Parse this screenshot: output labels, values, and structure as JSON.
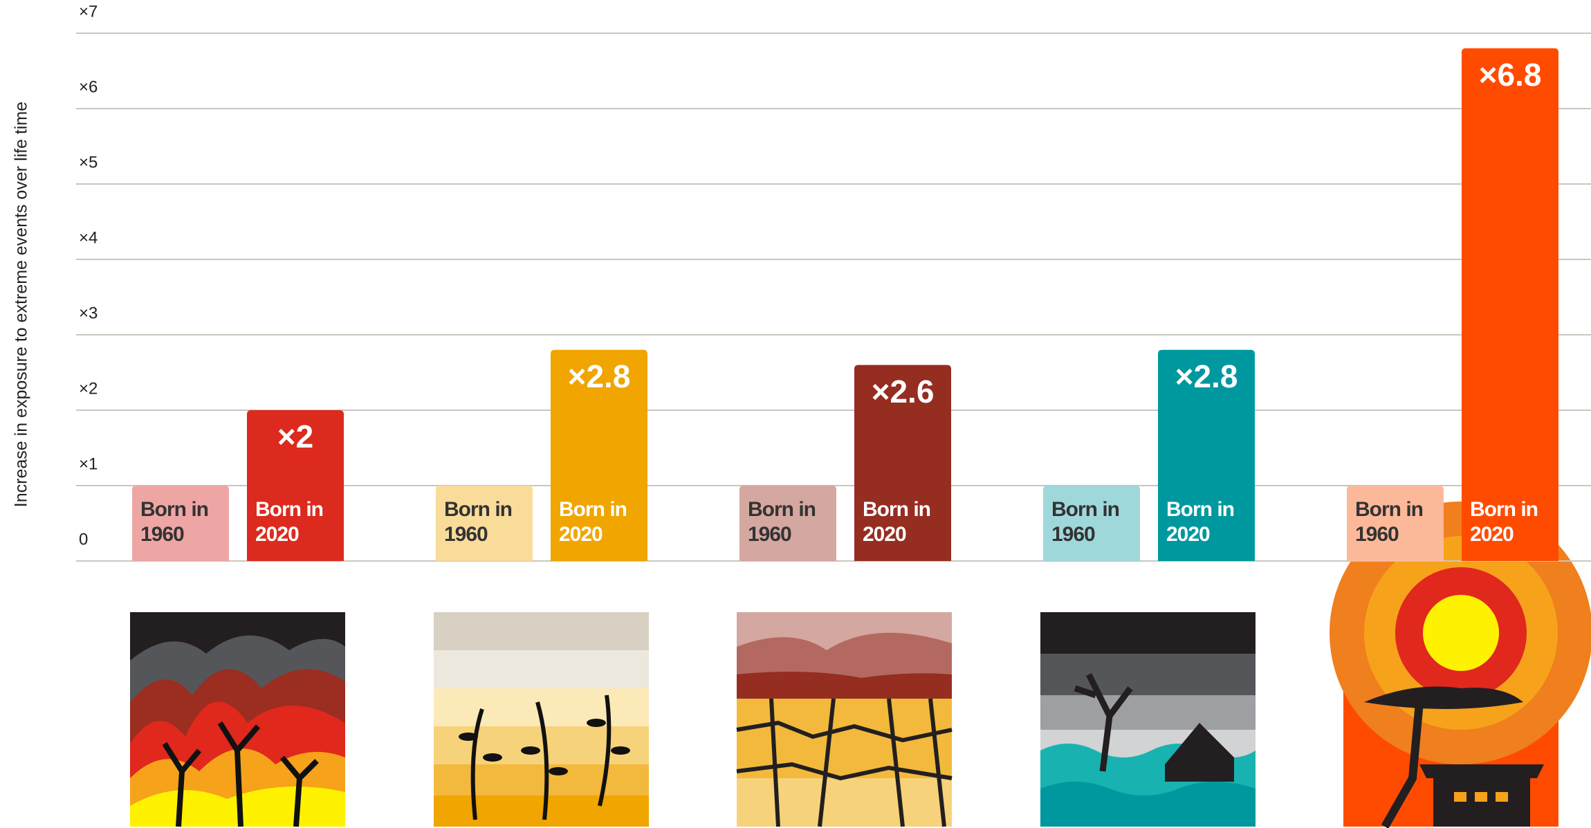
{
  "chart_data": {
    "type": "bar",
    "y_label": "Increase in exposure to extreme events over life time",
    "categories": [
      null,
      null,
      null,
      null,
      null
    ],
    "series": [
      {
        "name": "Born in 1960",
        "values": [
          1,
          1,
          1,
          1,
          1
        ],
        "colors": [
          "#eea6a4",
          "#f9dc9a",
          "#d4a7a0",
          "#9fd8db",
          "#fcb99a"
        ]
      },
      {
        "name": "Born in 2020",
        "values": [
          2,
          2.8,
          2.6,
          2.8,
          6.8
        ],
        "value_labels": [
          "×2",
          "×2.8",
          "×2.6",
          "×2.8",
          "×6.8"
        ],
        "colors": [
          "#dc2a1e",
          "#f0a500",
          "#952d20",
          "#00989f",
          "#ff4b00"
        ]
      }
    ],
    "ylim": [
      0,
      7
    ],
    "yticks": [
      0,
      {
        "value": 1,
        "label": "×1"
      },
      {
        "value": 2,
        "label": "×2"
      },
      {
        "value": 3,
        "label": "×3"
      },
      {
        "value": 4,
        "label": "×4"
      },
      {
        "value": 5,
        "label": "×5"
      },
      {
        "value": 6,
        "label": "×6"
      },
      {
        "value": 7,
        "label": "×7"
      }
    ],
    "grid": true
  }
}
